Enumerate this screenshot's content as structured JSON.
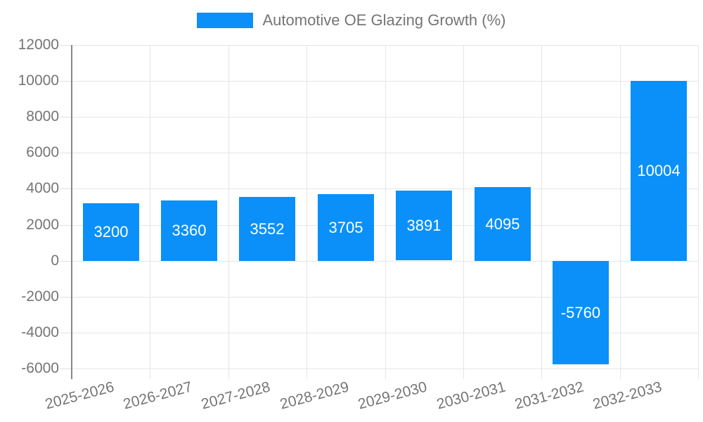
{
  "chart_data": {
    "type": "bar",
    "title": "Automotive OE Glazing Growth (%)",
    "legend": {
      "position": "top"
    },
    "categories": [
      "2025-2026",
      "2026-2027",
      "2027-2028",
      "2028-2029",
      "2029-2030",
      "2030-2031",
      "2031-2032",
      "2032-2033"
    ],
    "series": [
      {
        "name": "Automotive OE Glazing Growth (%)",
        "color": "#0a90f8",
        "values": [
          3200,
          3360,
          3552,
          3705,
          3891,
          4095,
          -5760,
          10004
        ]
      }
    ],
    "data_labels": [
      "3200",
      "3360",
      "3552",
      "3705",
      "3891",
      "4095",
      "-5760",
      "10004"
    ],
    "data_label_color": "#ffffff",
    "xlabel": "",
    "ylabel": "",
    "ylim": [
      -6000,
      12000
    ],
    "ytick_step": 2000,
    "yticks": [
      "12000",
      "10000",
      "8000",
      "6000",
      "4000",
      "2000",
      "0",
      "-2000",
      "-4000",
      "-6000"
    ],
    "x_label_rotation_deg": -15,
    "grid": {
      "horizontal": true,
      "vertical": true,
      "color": "#e6e6e6"
    },
    "axis": {
      "line_color": "#878787",
      "tick_color": "#e0e0e0",
      "text_color": "#757575"
    }
  }
}
